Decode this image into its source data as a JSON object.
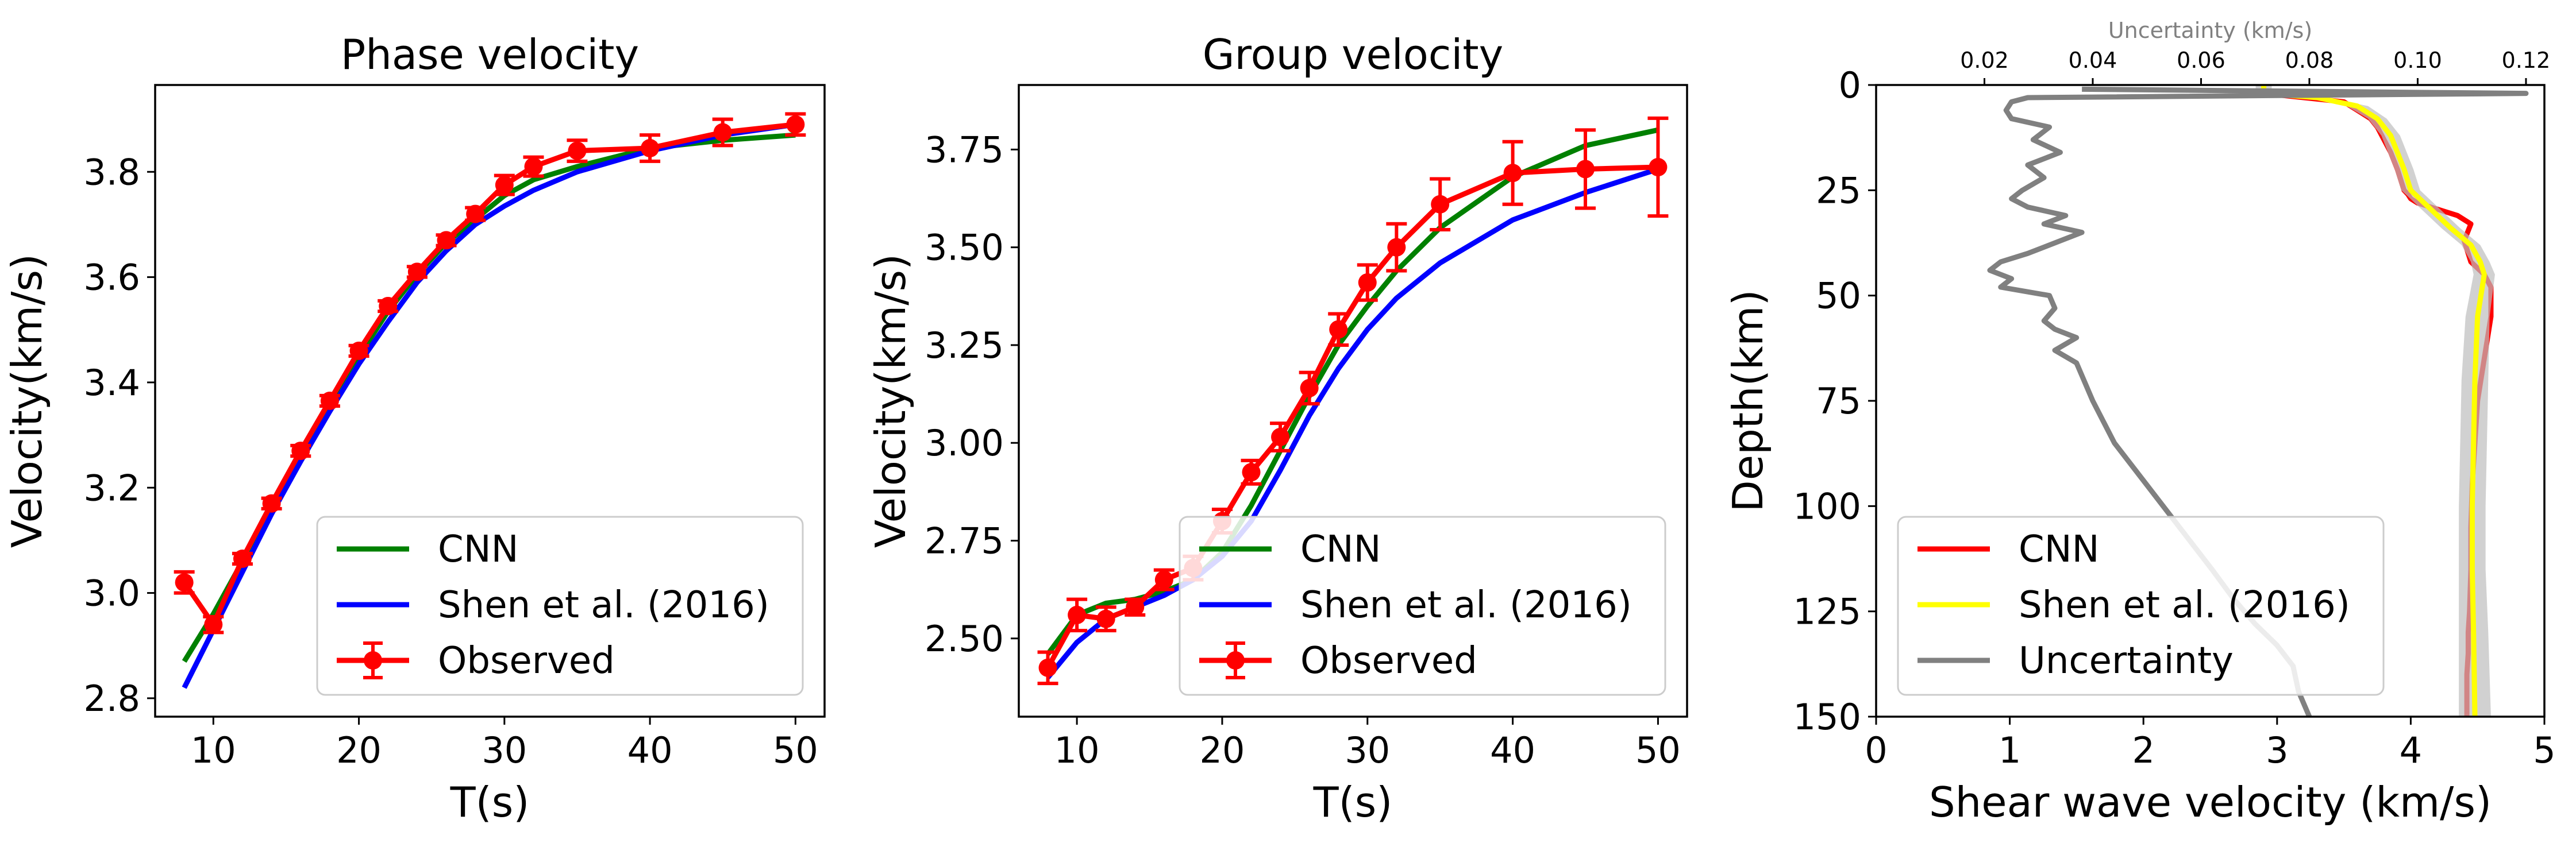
{
  "chart_data": [
    {
      "type": "line",
      "title": "Phase velocity",
      "xlabel": "T(s)",
      "ylabel": "Velocity(km/s)",
      "xlim": [
        6,
        52
      ],
      "ylim": [
        2.765,
        3.965
      ],
      "xticks": [
        10,
        20,
        30,
        40,
        50
      ],
      "yticks": [
        2.8,
        3.0,
        3.2,
        3.4,
        3.6,
        3.8
      ],
      "ytick_labels": [
        "2.8",
        "3.0",
        "3.2",
        "3.4",
        "3.6",
        "3.8"
      ],
      "legend": "lower-right",
      "series": [
        {
          "name": "CNN",
          "color": "#008000",
          "x": [
            8,
            10,
            12,
            14,
            16,
            18,
            20,
            22,
            24,
            26,
            28,
            30,
            32,
            35,
            40,
            45,
            50
          ],
          "y": [
            2.87,
            2.96,
            3.06,
            3.16,
            3.26,
            3.36,
            3.45,
            3.535,
            3.605,
            3.665,
            3.71,
            3.755,
            3.785,
            3.81,
            3.845,
            3.86,
            3.87
          ]
        },
        {
          "name": "Shen et al. (2016)",
          "color": "#0000ff",
          "x": [
            8,
            10,
            12,
            14,
            16,
            18,
            20,
            22,
            24,
            26,
            28,
            30,
            32,
            35,
            40,
            45,
            50
          ],
          "y": [
            2.82,
            2.93,
            3.04,
            3.15,
            3.25,
            3.345,
            3.435,
            3.515,
            3.59,
            3.65,
            3.7,
            3.735,
            3.765,
            3.8,
            3.84,
            3.87,
            3.89
          ]
        },
        {
          "name": "Observed",
          "color": "#ff0000",
          "x": [
            8,
            10,
            12,
            14,
            16,
            18,
            20,
            22,
            24,
            26,
            28,
            30,
            32,
            35,
            40,
            45,
            50
          ],
          "y": [
            3.02,
            2.94,
            3.065,
            3.17,
            3.27,
            3.365,
            3.46,
            3.545,
            3.61,
            3.67,
            3.72,
            3.775,
            3.81,
            3.84,
            3.845,
            3.875,
            3.89
          ],
          "err": [
            0.02,
            0.015,
            0.01,
            0.01,
            0.01,
            0.01,
            0.01,
            0.01,
            0.01,
            0.01,
            0.012,
            0.018,
            0.018,
            0.02,
            0.025,
            0.025,
            0.02
          ]
        }
      ]
    },
    {
      "type": "line",
      "title": "Group velocity",
      "xlabel": "T(s)",
      "ylabel": "Velocity(km/s)",
      "xlim": [
        6,
        52
      ],
      "ylim": [
        2.3,
        3.915
      ],
      "xticks": [
        10,
        20,
        30,
        40,
        50
      ],
      "yticks": [
        2.5,
        2.75,
        3.0,
        3.25,
        3.5,
        3.75
      ],
      "ytick_labels": [
        "2.50",
        "2.75",
        "3.00",
        "3.25",
        "3.50",
        "3.75"
      ],
      "legend": "lower-right",
      "series": [
        {
          "name": "CNN",
          "color": "#008000",
          "x": [
            8,
            10,
            12,
            14,
            16,
            18,
            20,
            22,
            24,
            26,
            28,
            30,
            32,
            35,
            40,
            45,
            50
          ],
          "y": [
            2.46,
            2.56,
            2.59,
            2.6,
            2.62,
            2.65,
            2.72,
            2.84,
            2.98,
            3.12,
            3.25,
            3.35,
            3.44,
            3.55,
            3.68,
            3.76,
            3.8
          ]
        },
        {
          "name": "Shen et al. (2016)",
          "color": "#0000ff",
          "x": [
            8,
            10,
            12,
            14,
            16,
            18,
            20,
            22,
            24,
            26,
            28,
            30,
            32,
            35,
            40,
            45,
            50
          ],
          "y": [
            2.4,
            2.49,
            2.55,
            2.58,
            2.61,
            2.65,
            2.71,
            2.8,
            2.93,
            3.07,
            3.19,
            3.29,
            3.37,
            3.46,
            3.57,
            3.64,
            3.7
          ]
        },
        {
          "name": "Observed",
          "color": "#ff0000",
          "x": [
            8,
            10,
            12,
            14,
            16,
            18,
            20,
            22,
            24,
            26,
            28,
            30,
            32,
            35,
            40,
            45,
            50
          ],
          "y": [
            2.425,
            2.56,
            2.55,
            2.58,
            2.65,
            2.68,
            2.8,
            2.925,
            3.015,
            3.14,
            3.29,
            3.41,
            3.5,
            3.61,
            3.69,
            3.7,
            3.705
          ],
          "err": [
            0.04,
            0.04,
            0.03,
            0.02,
            0.025,
            0.03,
            0.03,
            0.03,
            0.035,
            0.04,
            0.04,
            0.045,
            0.06,
            0.065,
            0.08,
            0.1,
            0.125
          ]
        }
      ]
    },
    {
      "type": "line",
      "xlabel": "Shear wave velocity (km/s)",
      "ylabel": "Depth(km)",
      "top_xlabel": "Uncertainty (km/s)",
      "xlim": [
        0,
        5
      ],
      "ylim": [
        150,
        0
      ],
      "xticks": [
        0,
        1,
        2,
        3,
        4,
        5
      ],
      "yticks": [
        0,
        25,
        50,
        75,
        100,
        125,
        150
      ],
      "top_xlim": [
        0.0,
        0.1234
      ],
      "top_xticks": [
        0.02,
        0.04,
        0.06,
        0.08,
        0.1,
        0.12
      ],
      "top_xtick_labels": [
        "0.02",
        "0.04",
        "0.06",
        "0.08",
        "0.10",
        "0.12"
      ],
      "legend": "lower-left",
      "series": [
        {
          "name": "CNN",
          "color": "#ff0000",
          "x": [
            2.9,
            2.9,
            3.2,
            3.5,
            3.6,
            3.7,
            3.75,
            3.8,
            3.85,
            3.9,
            3.95,
            3.98,
            4.0,
            4.05,
            4.15,
            4.25,
            4.35,
            4.45,
            4.4,
            4.45,
            4.55,
            4.6,
            4.6,
            4.55,
            4.5,
            4.48,
            4.46,
            4.45,
            4.45,
            4.44,
            4.43,
            4.43,
            4.42,
            4.42
          ],
          "y": [
            0,
            2,
            3,
            4,
            6,
            8,
            10,
            13,
            16,
            20,
            25,
            26,
            27,
            28,
            29,
            30,
            31,
            33,
            37,
            42,
            45,
            48,
            55,
            65,
            75,
            85,
            95,
            105,
            115,
            125,
            130,
            135,
            140,
            150
          ]
        },
        {
          "name": "Shen et al. (2016)",
          "color": "#ffff00",
          "x": [
            2.9,
            2.9,
            3.3,
            3.6,
            3.75,
            3.85,
            3.9,
            3.95,
            4.0,
            4.1,
            4.2,
            4.3,
            4.45,
            4.52,
            4.55,
            4.5,
            4.48,
            4.47,
            4.46,
            4.46,
            4.47,
            4.48
          ],
          "y": [
            0,
            2,
            3,
            5,
            8,
            12,
            16,
            20,
            25,
            28,
            31,
            34,
            38,
            42,
            45,
            55,
            70,
            85,
            100,
            115,
            130,
            150
          ],
          "band": [
            0.06,
            0.06,
            0.08,
            0.08,
            0.07,
            0.07,
            0.07,
            0.07,
            0.07,
            0.07,
            0.07,
            0.07,
            0.07,
            0.07,
            0.08,
            0.09,
            0.1,
            0.1,
            0.1,
            0.1,
            0.11,
            0.12
          ]
        },
        {
          "name": "Uncertainty",
          "color": "#808080",
          "axis": "top",
          "x": [
            0.038,
            0.12,
            0.028,
            0.025,
            0.024,
            0.025,
            0.032,
            0.029,
            0.034,
            0.028,
            0.031,
            0.027,
            0.025,
            0.028,
            0.035,
            0.031,
            0.038,
            0.032,
            0.028,
            0.023,
            0.021,
            0.025,
            0.023,
            0.032,
            0.033,
            0.031,
            0.033,
            0.037,
            0.033,
            0.037,
            0.04,
            0.044,
            0.05,
            0.056,
            0.062,
            0.066,
            0.07,
            0.074,
            0.077,
            0.078,
            0.08
          ],
          "y": [
            1,
            2,
            3,
            4,
            6,
            8,
            10,
            13,
            16,
            19,
            22,
            25,
            27,
            29,
            31,
            33,
            35,
            38,
            40,
            42,
            44,
            46,
            48,
            50,
            53,
            56,
            58,
            60,
            63,
            66,
            75,
            85,
            95,
            105,
            115,
            122,
            128,
            133,
            138,
            144,
            150
          ]
        }
      ]
    }
  ]
}
